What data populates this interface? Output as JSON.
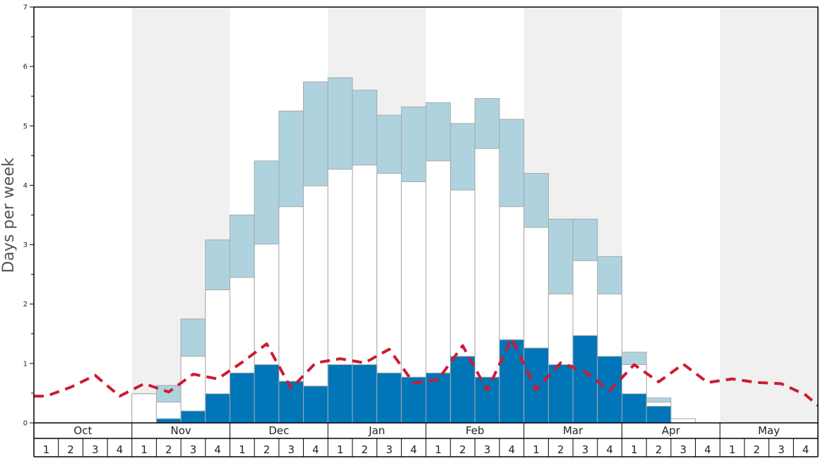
{
  "chart_data": {
    "type": "bar",
    "ylabel": "Days per week",
    "ylim": [
      0,
      7
    ],
    "y_ticks": [
      "0",
      "1",
      "2",
      "3",
      "4",
      "5",
      "6",
      "7"
    ],
    "months": [
      "Oct",
      "Nov",
      "Dec",
      "Jan",
      "Feb",
      "Mar",
      "Apr",
      "May"
    ],
    "week_labels": [
      "1",
      "2",
      "3",
      "4"
    ],
    "shaded_months": [
      "Nov",
      "Jan",
      "Mar",
      "May"
    ],
    "colors": {
      "dark_bar": "#0075b8",
      "white_bar": "#ffffff",
      "light_bar": "#aed3df",
      "bar_outline": "#a8a8a8",
      "dashed_line": "#cc1b33",
      "shade": "#f0f0f0"
    },
    "series": [
      {
        "values": [
          0,
          0,
          0,
          0,
          0,
          0.07,
          0.2,
          0.49,
          0.84,
          0.98,
          0.7,
          0.62,
          0.98,
          0.98,
          0.84,
          0.77,
          0.84,
          1.12,
          0.77,
          1.4,
          1.26,
          0.98,
          1.47,
          1.12,
          0.49,
          0.28,
          0,
          0,
          0,
          0,
          0,
          0
        ]
      },
      {
        "values": [
          0,
          0,
          0,
          0,
          0.49,
          0.35,
          1.12,
          2.24,
          2.45,
          3.01,
          3.64,
          3.99,
          4.27,
          4.34,
          4.2,
          4.06,
          4.41,
          3.92,
          4.62,
          3.64,
          3.29,
          2.17,
          2.73,
          2.17,
          0.98,
          0.35,
          0.07,
          0,
          0,
          0,
          0,
          0
        ]
      },
      {
        "values": [
          0,
          0,
          0,
          0,
          0.49,
          0.63,
          1.75,
          3.08,
          3.5,
          4.41,
          5.25,
          5.74,
          5.81,
          5.6,
          5.18,
          5.32,
          5.39,
          5.04,
          5.46,
          5.11,
          4.2,
          3.43,
          3.43,
          2.8,
          1.19,
          0.42,
          0.07,
          0,
          0,
          0,
          0,
          0
        ]
      },
      {
        "line": true,
        "values": [
          0.45,
          0.6,
          0.8,
          0.45,
          0.66,
          0.52,
          0.82,
          0.74,
          1.02,
          1.33,
          0.58,
          1.01,
          1.08,
          1.01,
          1.24,
          0.67,
          0.73,
          1.3,
          0.55,
          1.42,
          0.56,
          1.01,
          0.86,
          0.54,
          0.98,
          0.69,
          0.99,
          0.68,
          0.74,
          0.68,
          0.66,
          0.47
        ]
      }
    ]
  }
}
